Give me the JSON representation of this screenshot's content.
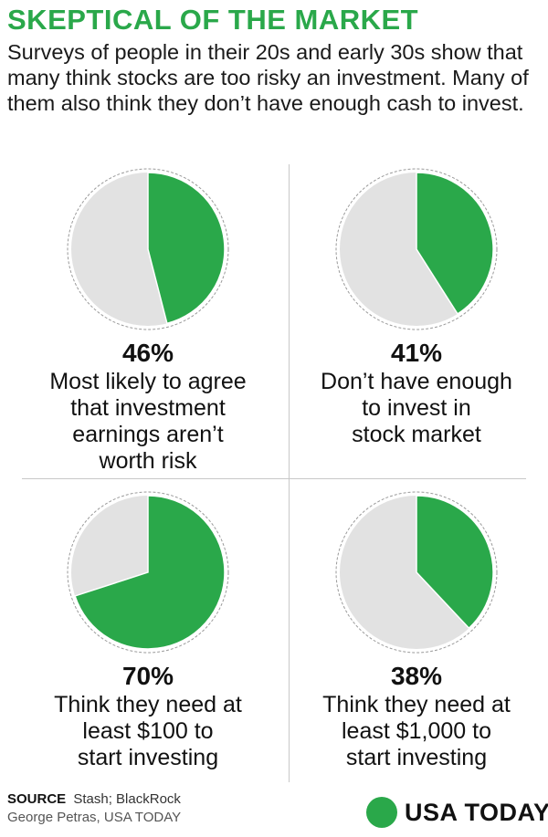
{
  "header": {
    "title": "SKEPTICAL OF  THE MARKET",
    "subtitle": "Surveys of people in their 20s and early 30s show that many think stocks are too risky an investment. Many of them also think they don’t have enough cash to invest."
  },
  "colors": {
    "accent": "#2aa84a",
    "rest": "#e2e2e2",
    "divider": "#c8c8c8"
  },
  "panels": [
    {
      "pct_label": "46%",
      "lines": [
        "Most likely to agree",
        "that investment",
        "earnings aren’t",
        "worth risk"
      ]
    },
    {
      "pct_label": "41%",
      "lines": [
        "Don’t have enough",
        "to invest in",
        "stock market"
      ]
    },
    {
      "pct_label": "70%",
      "lines": [
        "Think they need at",
        "least $100 to",
        "start investing"
      ]
    },
    {
      "pct_label": "38%",
      "lines": [
        "Think they need at",
        "least $1,000 to",
        "start investing"
      ]
    }
  ],
  "chart_data": [
    {
      "type": "pie",
      "values": [
        46,
        54
      ],
      "labels": [
        "46%",
        ""
      ],
      "title": ""
    },
    {
      "type": "pie",
      "values": [
        41,
        59
      ],
      "labels": [
        "41%",
        ""
      ],
      "title": ""
    },
    {
      "type": "pie",
      "values": [
        70,
        30
      ],
      "labels": [
        "70%",
        ""
      ],
      "title": ""
    },
    {
      "type": "pie",
      "values": [
        38,
        62
      ],
      "labels": [
        "38%",
        ""
      ],
      "title": ""
    }
  ],
  "footer": {
    "source_label": "SOURCE",
    "source_text": "Stash; BlackRock",
    "credit": "George Petras, USA TODAY",
    "logo_text": "USA TODAY"
  }
}
